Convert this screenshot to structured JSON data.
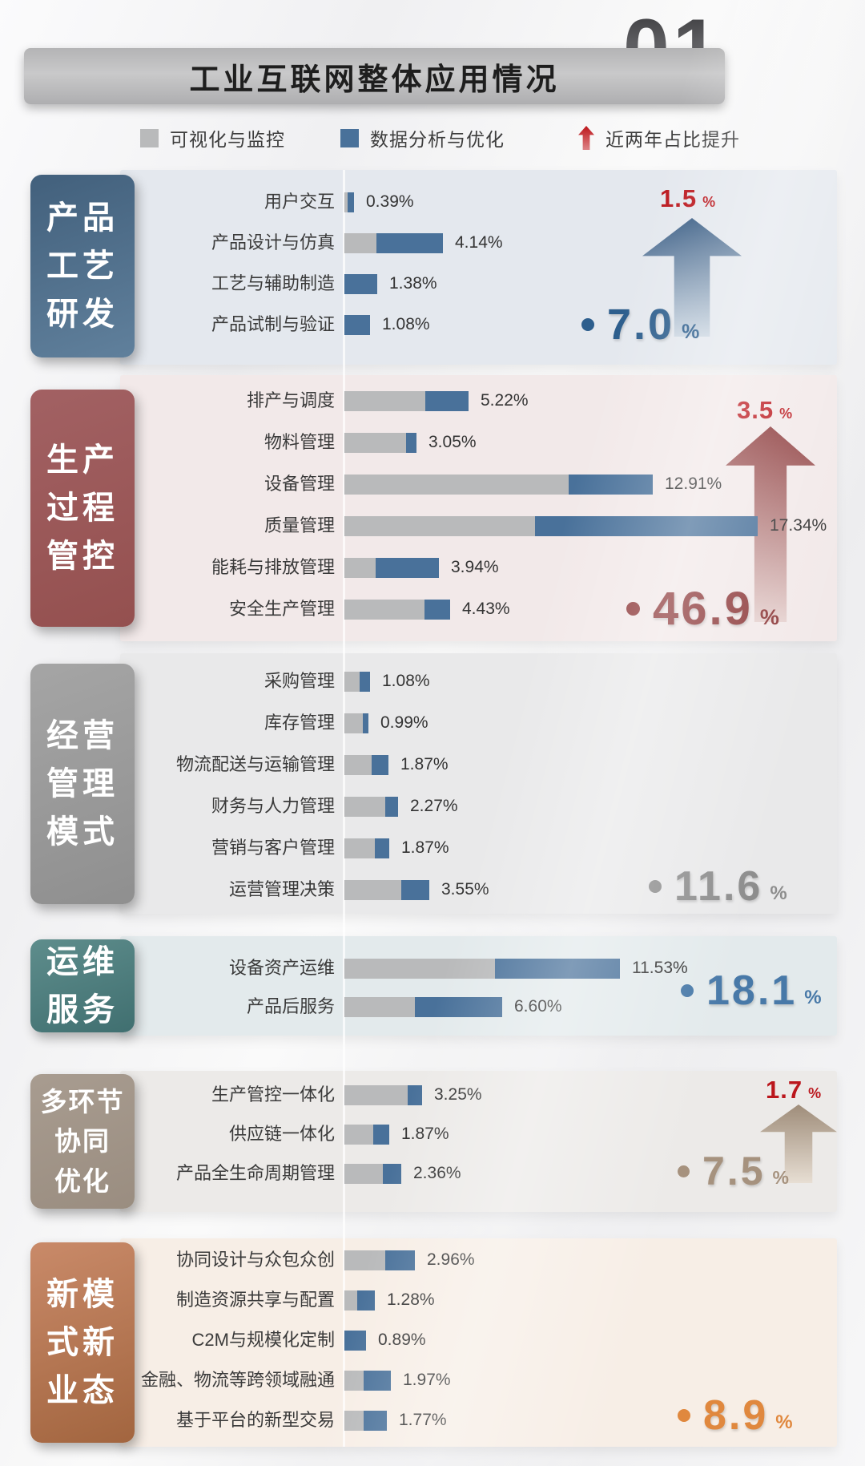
{
  "page_number": "01",
  "title": "工业互联网整体应用情况",
  "legend": {
    "viz": "可视化与监控",
    "opt": "数据分析与优化",
    "growth": "近两年占比提升"
  },
  "colors": {
    "bar_gray": "#b9babb",
    "bar_blue": "#49719a",
    "growth_red": "#bb171d",
    "legend_arrow_gradient": [
      "#bd161b",
      "#dd8487"
    ]
  },
  "chart_data": {
    "type": "bar",
    "orientation": "horizontal",
    "unit": "%",
    "stack_series": [
      "可视化与监控",
      "数据分析与优化"
    ],
    "legend_position": "top",
    "axis": "shared vertical baseline, ~29.8 px per 1%",
    "sections": [
      {
        "id": "s1",
        "category": "产品工艺研发",
        "category_lines": [
          "产品",
          "工艺",
          "研发"
        ],
        "panel_bg": "#e4e8ee",
        "box_gradient": [
          "#42607c",
          "#60809c"
        ],
        "accent": "#2d5e8d",
        "growth_pct": "1.5",
        "share_pct": "7.0",
        "arrow_gradient": [
          "#3c5f86",
          "#ccd7e2"
        ],
        "rows": [
          {
            "label": "用户交互",
            "value_label": "0.39%",
            "total": 0.39,
            "viz": 0.12,
            "opt": 0.27
          },
          {
            "label": "产品设计与仿真",
            "value_label": "4.14%",
            "total": 4.14,
            "viz": 1.35,
            "opt": 2.79
          },
          {
            "label": "工艺与辅助制造",
            "value_label": "1.38%",
            "total": 1.38,
            "viz": 0,
            "opt": 1.38
          },
          {
            "label": "产品试制与验证",
            "value_label": "1.08%",
            "total": 1.08,
            "viz": 0,
            "opt": 1.08
          }
        ]
      },
      {
        "id": "s2",
        "category": "生产过程管控",
        "category_lines": [
          "生产",
          "过程",
          "管控"
        ],
        "panel_bg": "#f2e9e9",
        "box_gradient": [
          "#a26163",
          "#94504f"
        ],
        "accent": "#8e3b3c",
        "growth_pct": "3.5",
        "share_pct": "46.9",
        "arrow_gradient": [
          "#8c3a3b",
          "#e6d2d0"
        ],
        "rows": [
          {
            "label": "排产与调度",
            "value_label": "5.22%",
            "total": 5.22,
            "viz": 3.4,
            "opt": 1.82
          },
          {
            "label": "物料管理",
            "value_label": "3.05%",
            "total": 3.05,
            "viz": 2.6,
            "opt": 0.45
          },
          {
            "label": "设备管理",
            "value_label": "12.91%",
            "total": 12.91,
            "viz": 9.4,
            "opt": 3.51
          },
          {
            "label": "质量管理",
            "value_label": "17.34%",
            "total": 17.34,
            "viz": 8.0,
            "opt": 9.34
          },
          {
            "label": "能耗与排放管理",
            "value_label": "3.94%",
            "total": 3.94,
            "viz": 1.3,
            "opt": 2.64
          },
          {
            "label": "安全生产管理",
            "value_label": "4.43%",
            "total": 4.43,
            "viz": 3.35,
            "opt": 1.08
          }
        ]
      },
      {
        "id": "s3",
        "category": "经营管理模式",
        "category_lines": [
          "经营",
          "管理",
          "模式"
        ],
        "panel_bg": "#e9e9ea",
        "box_gradient": [
          "#a5a5a5",
          "#8f8f8f"
        ],
        "accent": "#8d8d8d",
        "growth_pct": null,
        "share_pct": "11.6",
        "rows": [
          {
            "label": "采购管理",
            "value_label": "1.08%",
            "total": 1.08,
            "viz": 0.65,
            "opt": 0.43
          },
          {
            "label": "库存管理",
            "value_label": "0.99%",
            "total": 0.99,
            "viz": 0.77,
            "opt": 0.22
          },
          {
            "label": "物流配送与运输管理",
            "value_label": "1.87%",
            "total": 1.87,
            "viz": 1.15,
            "opt": 0.72
          },
          {
            "label": "财务与人力管理",
            "value_label": "2.27%",
            "total": 2.27,
            "viz": 1.72,
            "opt": 0.55
          },
          {
            "label": "营销与客户管理",
            "value_label": "1.87%",
            "total": 1.87,
            "viz": 1.27,
            "opt": 0.6
          },
          {
            "label": "运营管理决策",
            "value_label": "3.55%",
            "total": 3.55,
            "viz": 2.37,
            "opt": 1.18
          }
        ]
      },
      {
        "id": "s4",
        "category": "运维服务",
        "category_lines": [
          "运维",
          "服务"
        ],
        "panel_bg": "#e3eaec",
        "box_gradient": [
          "#5e8d8c",
          "#406f70"
        ],
        "accent": "#4879a8",
        "growth_pct": null,
        "share_pct": "18.1",
        "rows": [
          {
            "label": "设备资产运维",
            "value_label": "11.53%",
            "total": 11.53,
            "viz": 6.3,
            "opt": 5.23
          },
          {
            "label": "产品后服务",
            "value_label": "6.60%",
            "total": 6.6,
            "viz": 2.95,
            "opt": 3.65
          }
        ]
      },
      {
        "id": "s5",
        "category": "多环节协同优化",
        "category_lines": [
          "多环节",
          "协同",
          "优化"
        ],
        "panel_bg": "#eceae8",
        "box_gradient": [
          "#a89c90",
          "#9a8d80"
        ],
        "accent": "#a6927e",
        "growth_pct": "1.7",
        "share_pct": "7.5",
        "arrow_gradient": [
          "#9f8d7a",
          "#e7ded3"
        ],
        "rows": [
          {
            "label": "生产管控一体化",
            "value_label": "3.25%",
            "total": 3.25,
            "viz": 2.65,
            "opt": 0.6
          },
          {
            "label": "供应链一体化",
            "value_label": "1.87%",
            "total": 1.87,
            "viz": 1.2,
            "opt": 0.67
          },
          {
            "label": "产品全生命周期管理",
            "value_label": "2.36%",
            "total": 2.36,
            "viz": 1.6,
            "opt": 0.76
          }
        ]
      },
      {
        "id": "s6",
        "category": "新模式新业态",
        "category_lines": [
          "新模",
          "式新",
          "业态"
        ],
        "panel_bg": "#f7eee6",
        "box_gradient": [
          "#c98a69",
          "#a2653f"
        ],
        "accent": "#e0883e",
        "growth_pct": null,
        "share_pct": "8.9",
        "rows": [
          {
            "label": "协同设计与众包众创",
            "value_label": "2.96%",
            "total": 2.96,
            "viz": 1.71,
            "opt": 1.25
          },
          {
            "label": "制造资源共享与配置",
            "value_label": "1.28%",
            "total": 1.28,
            "viz": 0.55,
            "opt": 0.73
          },
          {
            "label": "C2M与规模化定制",
            "value_label": "0.89%",
            "total": 0.89,
            "viz": 0,
            "opt": 0.89
          },
          {
            "label": "金融、物流等跨领域融通",
            "value_label": "1.97%",
            "total": 1.97,
            "viz": 0.82,
            "opt": 1.15
          },
          {
            "label": "基于平台的新型交易",
            "value_label": "1.77%",
            "total": 1.77,
            "viz": 0.8,
            "opt": 0.97
          }
        ]
      }
    ]
  }
}
